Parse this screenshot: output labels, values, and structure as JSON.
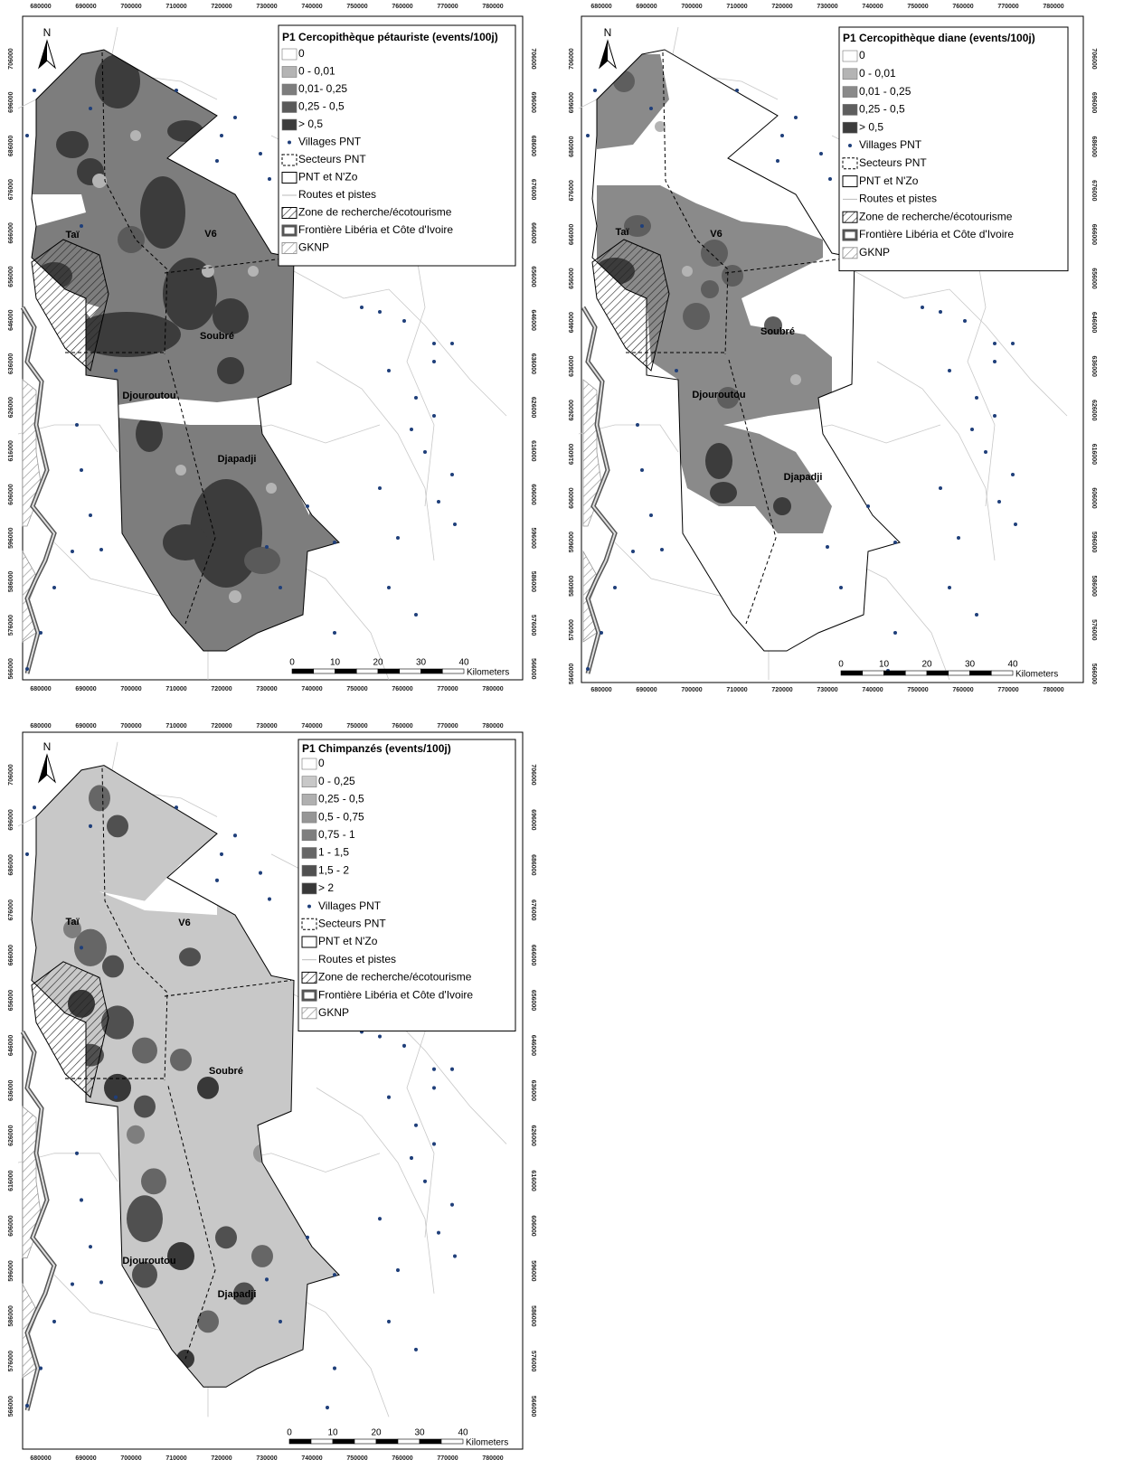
{
  "grid": {
    "x_labels": [
      680000,
      690000,
      700000,
      710000,
      720000,
      730000,
      740000,
      750000,
      760000,
      770000,
      780000
    ],
    "y_labels": [
      706000,
      696000,
      686000,
      676000,
      666000,
      656000,
      646000,
      636000,
      626000,
      616000,
      606000,
      596000,
      586000,
      576000,
      566000
    ]
  },
  "north": "N",
  "places": [
    "Taï",
    "V6",
    "Soubré",
    "Djouroutou",
    "Djapadji"
  ],
  "scale": {
    "ticks": [
      0,
      10,
      20,
      30,
      40
    ],
    "unit": "Kilometers"
  },
  "common_legend": [
    "Villages PNT",
    "Secteurs PNT",
    "PNT et N'Zo",
    "Routes et pistes",
    "Zone de recherche/écotourisme",
    "Frontière Libéria et Côte d'Ivoire",
    "GKNP"
  ],
  "maps": [
    {
      "legend_title": "P1 Cercopithèque pétauriste (events/100j)",
      "classes": [
        {
          "label": "0",
          "color": "#ffffff"
        },
        {
          "label": "0 - 0,01",
          "color": "#b4b4b4"
        },
        {
          "label": "0,01- 0,25",
          "color": "#7d7d7d"
        },
        {
          "label": "0,25 - 0,5",
          "color": "#5a5a5a"
        },
        {
          "label": "> 0,5",
          "color": "#3c3c3c"
        }
      ]
    },
    {
      "legend_title": "P1 Cercopithèque diane (events/100j)",
      "classes": [
        {
          "label": "0",
          "color": "#ffffff"
        },
        {
          "label": "0 - 0,01",
          "color": "#b4b4b4"
        },
        {
          "label": "0,01 - 0,25",
          "color": "#8a8a8a"
        },
        {
          "label": "0,25 - 0,5",
          "color": "#5e5e5e"
        },
        {
          "label": "> 0,5",
          "color": "#3c3c3c"
        }
      ]
    },
    {
      "legend_title": "P1 Chimpanzés (events/100j)",
      "classes": [
        {
          "label": "0",
          "color": "#ffffff"
        },
        {
          "label": "0 - 0,25",
          "color": "#c8c8c8"
        },
        {
          "label": "0,25 - 0,5",
          "color": "#b0b0b0"
        },
        {
          "label": "0,5 - 0,75",
          "color": "#969696"
        },
        {
          "label": "0,75 - 1",
          "color": "#7e7e7e"
        },
        {
          "label": "1 - 1,5",
          "color": "#666666"
        },
        {
          "label": "1,5 - 2",
          "color": "#505050"
        },
        {
          "label": "> 2",
          "color": "#383838"
        }
      ]
    }
  ]
}
